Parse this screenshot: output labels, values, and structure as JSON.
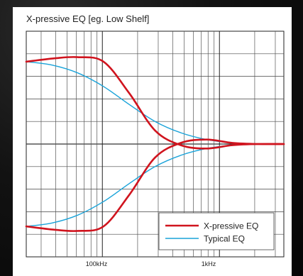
{
  "chart_data": {
    "type": "line",
    "title": "X-pressive EQ [eg. Low Shelf]",
    "xlabel": "",
    "ylabel": "",
    "x_scale": "log",
    "x_tick_labels": [
      "100kHz",
      "1kHz"
    ],
    "grid": true,
    "legend_position": "bottom-right",
    "series": [
      {
        "name": "X-pressive EQ",
        "color": "#d0141e",
        "curves": [
          {
            "x": [
              0.0,
              0.11,
              0.2,
              0.3,
              0.4,
              0.5,
              0.6,
              0.7,
              0.8,
              0.9,
              1.0
            ],
            "y": [
              0.73,
              0.76,
              0.77,
              0.73,
              0.45,
              0.12,
              -0.01,
              -0.04,
              -0.01,
              0.0,
              0.0
            ]
          },
          {
            "x": [
              0.0,
              0.11,
              0.2,
              0.3,
              0.4,
              0.5,
              0.6,
              0.7,
              0.8,
              0.9,
              1.0
            ],
            "y": [
              -0.73,
              -0.76,
              -0.77,
              -0.73,
              -0.45,
              -0.12,
              0.01,
              0.04,
              0.01,
              0.0,
              0.0
            ]
          }
        ]
      },
      {
        "name": "Typical EQ",
        "color": "#1aa3d9",
        "curves": [
          {
            "x": [
              0.0,
              0.1,
              0.2,
              0.3,
              0.4,
              0.5,
              0.6,
              0.7,
              0.8,
              0.9,
              1.0
            ],
            "y": [
              0.73,
              0.7,
              0.63,
              0.51,
              0.35,
              0.2,
              0.1,
              0.04,
              0.01,
              0.0,
              0.0
            ]
          },
          {
            "x": [
              0.0,
              0.1,
              0.2,
              0.3,
              0.4,
              0.5,
              0.6,
              0.7,
              0.8,
              0.9,
              1.0
            ],
            "y": [
              -0.73,
              -0.7,
              -0.63,
              -0.51,
              -0.35,
              -0.2,
              -0.1,
              -0.04,
              -0.01,
              0.0,
              0.0
            ]
          }
        ]
      }
    ]
  }
}
